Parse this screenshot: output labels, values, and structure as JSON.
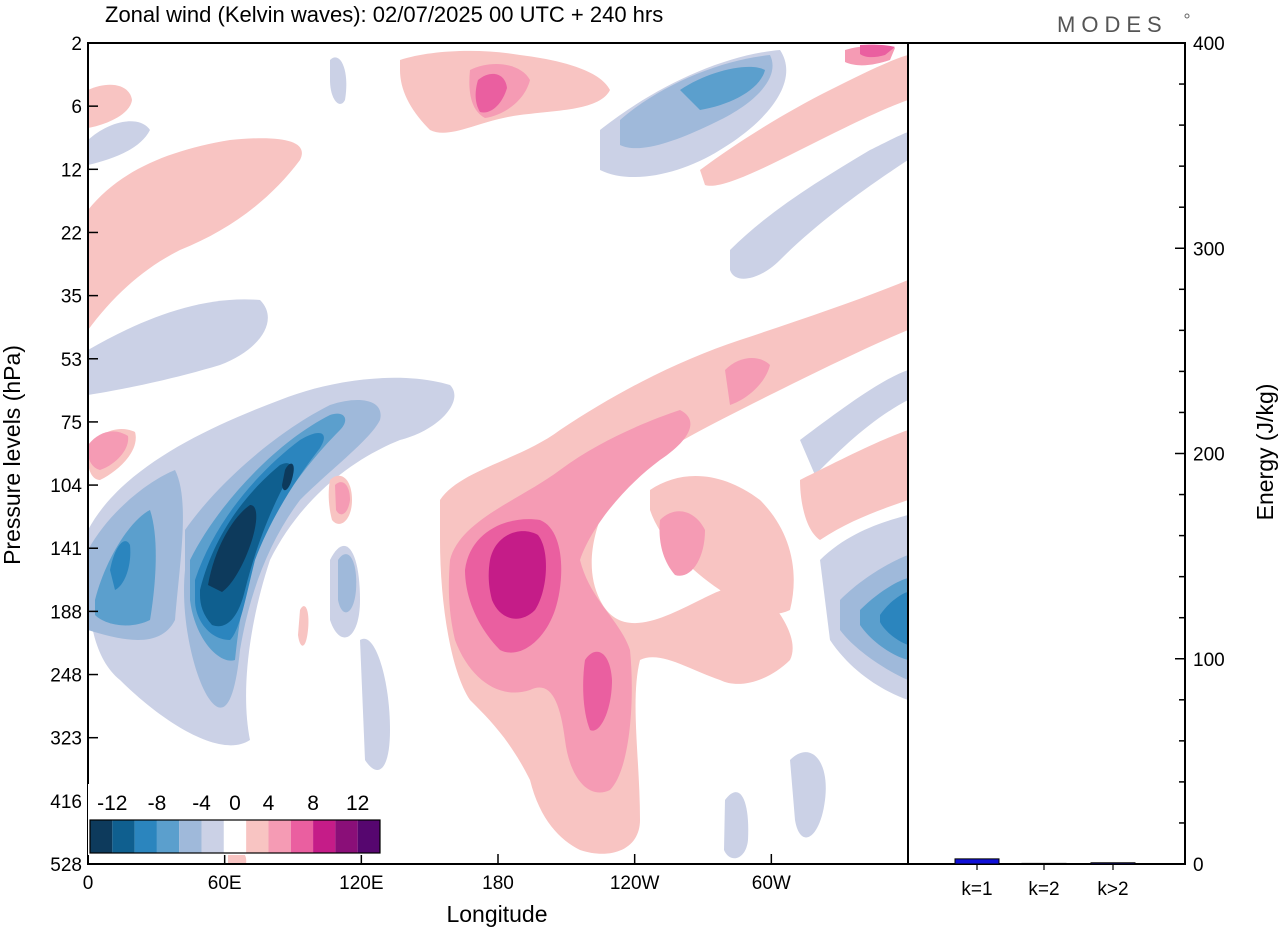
{
  "header": {
    "title": "Zonal wind (Kelvin waves):  02/07/2025  00 UTC  + 240 hrs",
    "logo": "MODES"
  },
  "chart_data": [
    {
      "type": "heatmap",
      "title": "Zonal wind (Kelvin waves):  02/07/2025  00 UTC  + 240 hrs",
      "xlabel": "Longitude",
      "ylabel": "Pressure levels (hPa)",
      "x_ticks": [
        "0",
        "60E",
        "120E",
        "180",
        "120W",
        "60W"
      ],
      "y_ticks": [
        "2",
        "6",
        "12",
        "22",
        "35",
        "53",
        "75",
        "104",
        "141",
        "188",
        "248",
        "323",
        "416",
        "528"
      ],
      "colorbar": {
        "labels": [
          "-12",
          "-8",
          "-4",
          "0",
          "4",
          "8",
          "12"
        ],
        "levels": [
          -14,
          -12,
          -10,
          -8,
          -6,
          -4,
          -2,
          2,
          4,
          6,
          8,
          10,
          12,
          14
        ],
        "colors": [
          "#0d3a5c",
          "#0f5f8f",
          "#2b85be",
          "#5b9fcd",
          "#9fb9da",
          "#cbd1e6",
          "#ffffff",
          "#f8c4c2",
          "#f59bb4",
          "#ea5fa0",
          "#c51c88",
          "#8a0f78",
          "#56066f"
        ]
      },
      "features": [
        {
          "name": "strong easterly core",
          "lon": 75,
          "p": 150,
          "value": -14
        },
        {
          "name": "easterly band",
          "lon": 95,
          "p": 110,
          "value": -8
        },
        {
          "name": "westerly core",
          "lon": 188,
          "p": 150,
          "value": 10
        },
        {
          "name": "westerly lobe",
          "lon": 230,
          "p": 240,
          "value": 8
        },
        {
          "name": "upper westerly",
          "lon": 180,
          "p": 6,
          "value": 8
        },
        {
          "name": "upper easterly",
          "lon": 290,
          "p": 6,
          "value": -8
        },
        {
          "name": "eastern easterly",
          "lon": 355,
          "p": 188,
          "value": -8
        }
      ]
    },
    {
      "type": "bar",
      "ylabel": "Energy (J/kg)",
      "categories": [
        "k=1",
        "k=2",
        "k>2"
      ],
      "values": [
        2.5,
        0.3,
        0.6
      ],
      "ylim": [
        0,
        400
      ],
      "y_ticks": [
        "0",
        "100",
        "200",
        "300",
        "400"
      ],
      "bar_color": "#1010d8"
    }
  ]
}
